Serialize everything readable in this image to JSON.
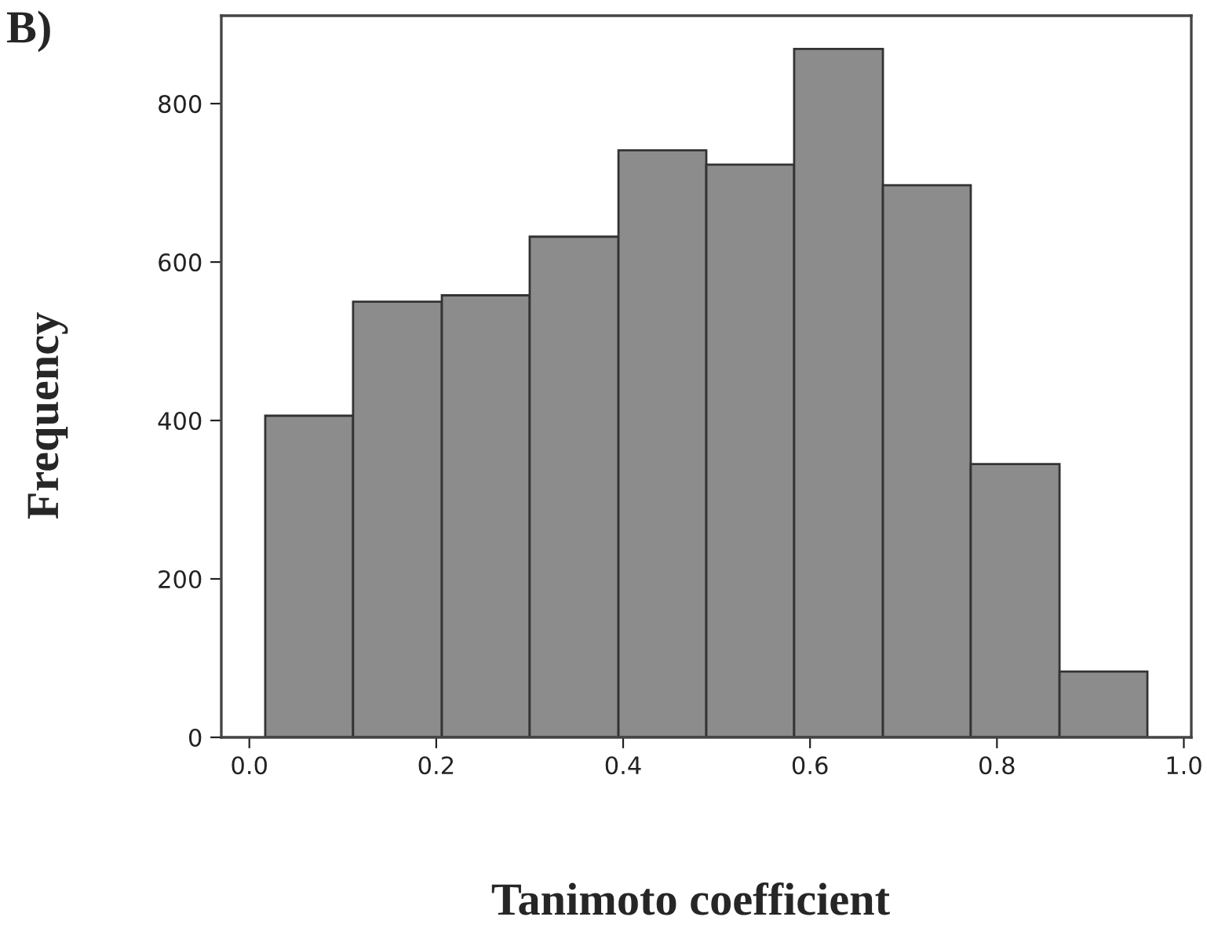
{
  "chart_data": {
    "type": "histogram",
    "xlabel": "Tanimoto coefficient",
    "ylabel": "Frequency",
    "annotations": [
      "B)"
    ],
    "bins": [
      0.017,
      0.111,
      0.206,
      0.3,
      0.395,
      0.489,
      0.583,
      0.678,
      0.772,
      0.867,
      0.961
    ],
    "values": [
      406,
      550,
      558,
      632,
      741,
      723,
      869,
      697,
      345,
      83
    ],
    "color": "#8c8c8c",
    "xlim": [
      -0.03,
      1.008
    ],
    "xticks": [
      {
        "value": 0,
        "label": "0.0"
      },
      0.2,
      0.4,
      0.6,
      0.8,
      {
        "value": 1,
        "label": "1.0"
      }
    ],
    "ylim": [
      0,
      911
    ],
    "yticks": [
      0,
      200,
      400,
      600,
      800
    ],
    "grid": false,
    "legend": false
  }
}
